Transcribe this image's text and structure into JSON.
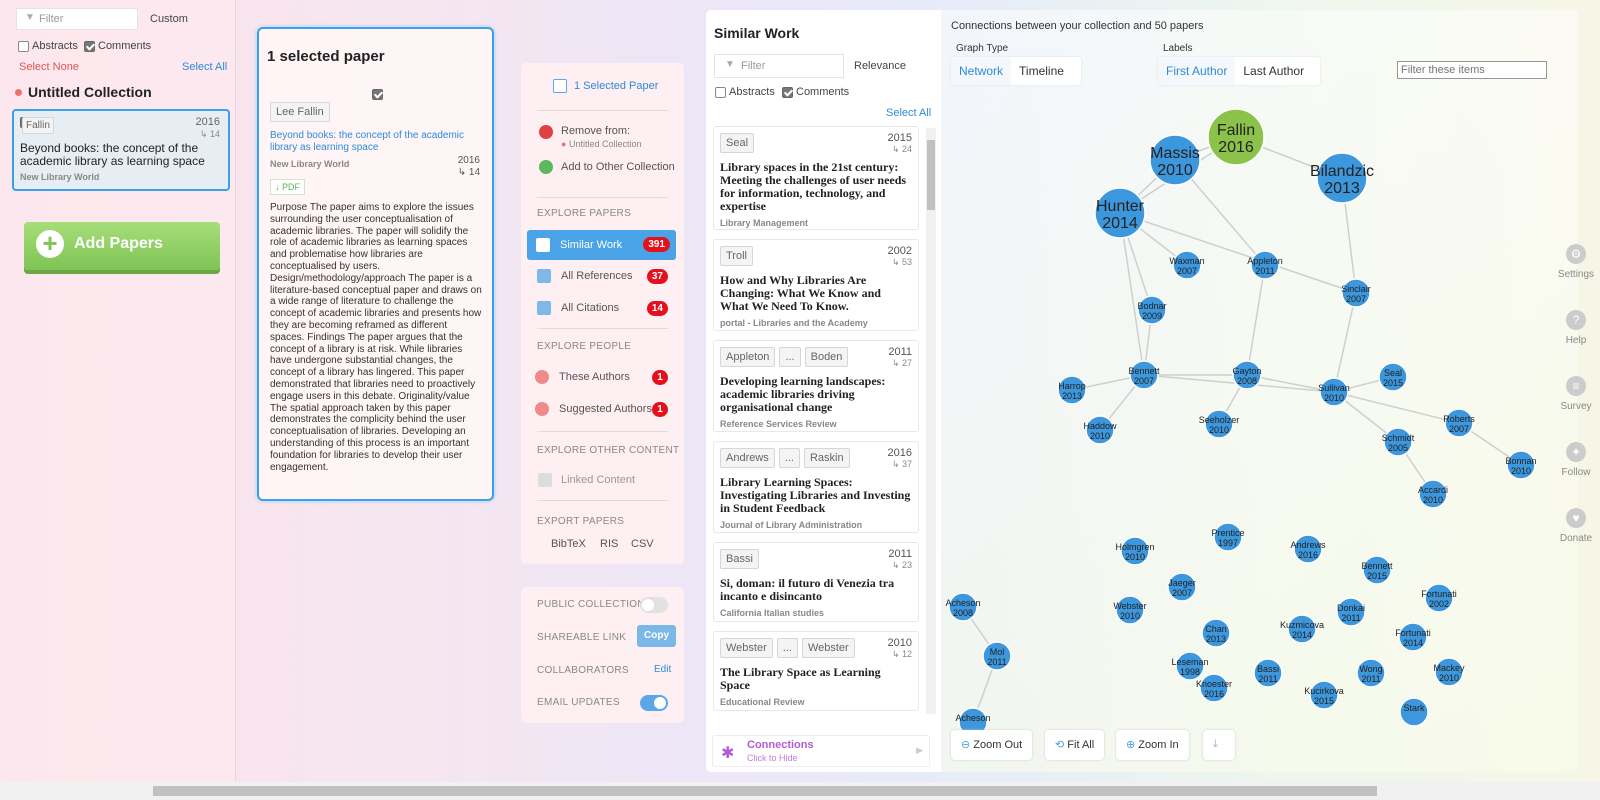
{
  "left": {
    "filter_placeholder": "Filter",
    "custom_label": "Custom",
    "abstracts_label": "Abstracts",
    "comments_label": "Comments",
    "select_none": "Select None",
    "select_all": "Select All",
    "collection_name": "Untitled Collection",
    "paper": {
      "author": "Fallin",
      "year": "2016",
      "cites": "↳ 14",
      "title": "Beyond books: the concept of the academic library as learning space",
      "journal": "New Library World"
    },
    "add_papers": "Add Papers"
  },
  "selected": {
    "heading": "1 selected paper",
    "author": "Lee Fallin",
    "title": "Beyond books: the concept of the academic library as learning space",
    "journal": "New Library World",
    "year": "2016",
    "cites": "↳ 14",
    "pdf": "↓ PDF",
    "abstract": "Purpose The paper aims to explore the issues surrounding the user conceptualisation of academic libraries. The paper will solidify the role of academic libraries as learning spaces and problematise how libraries are conceptualised by users. Design/methodology/approach The paper is a literature-based conceptual paper and draws on a wide range of literature to challenge the concept of academic libraries and presents how they are becoming reframed as different spaces. Findings The paper argues that the concept of a library is at risk. While libraries have undergone substantial changes, the concept of a library has lingered. This paper demonstrated that libraries need to proactively engage users in this debate. Originality/value The spatial approach taken by this paper demonstrates the complicity behind the user conceptualisation of libraries. Developing an understanding of this process is an important foundation for libraries to develop their user engagement."
  },
  "menu": {
    "selected_paper": "1 Selected Paper",
    "remove_from": "Remove from:",
    "remove_collection": "Untitled Collection",
    "add_other": "Add to Other Collection",
    "explore_papers": "EXPLORE PAPERS",
    "similar_work": "Similar Work",
    "similar_count": "391",
    "all_references": "All References",
    "references_count": "37",
    "all_citations": "All Citations",
    "citations_count": "14",
    "explore_people": "EXPLORE PEOPLE",
    "these_authors": "These Authors",
    "these_authors_count": "1",
    "suggested_authors": "Suggested Authors",
    "suggested_count": "1",
    "explore_other": "EXPLORE OTHER CONTENT",
    "linked_content": "Linked Content",
    "export_papers": "EXPORT PAPERS",
    "bibtex": "BibTeX",
    "ris": "RIS",
    "csv": "CSV"
  },
  "share": {
    "public_collection": "PUBLIC COLLECTION",
    "shareable_link": "SHAREABLE LINK",
    "copy": "Copy",
    "collaborators": "COLLABORATORS",
    "edit": "Edit",
    "email_updates": "EMAIL UPDATES",
    "public_on": false,
    "email_on": true
  },
  "similar": {
    "heading": "Similar Work",
    "filter_placeholder": "Filter",
    "sort": "Relevance",
    "abstracts_label": "Abstracts",
    "comments_label": "Comments",
    "select_all": "Select All",
    "papers": [
      {
        "authors": [
          "Seal"
        ],
        "year": "2015",
        "cites": "↳ 24",
        "title": "Library spaces in the 21st century: Meeting the challenges of user needs for information, technology, and expertise",
        "journal": "Library Management"
      },
      {
        "authors": [
          "Troll"
        ],
        "year": "2002",
        "cites": "↳ 53",
        "title": "How and Why Libraries Are Changing: What We Know and What We Need To Know.",
        "journal": "portal - Libraries and the Academy"
      },
      {
        "authors": [
          "Appleton",
          "...",
          "Boden"
        ],
        "year": "2011",
        "cites": "↳ 27",
        "title": "Developing learning landscapes: academic libraries driving organisational change",
        "journal": "Reference Services Review"
      },
      {
        "authors": [
          "Andrews",
          "...",
          "Raskin"
        ],
        "year": "2016",
        "cites": "↳ 37",
        "title": "Library Learning Spaces: Investigating Libraries and Investing in Student Feedback",
        "journal": "Journal of Library Administration"
      },
      {
        "authors": [
          "Bassi"
        ],
        "year": "2011",
        "cites": "↳ 23",
        "title": "Si, doman: il futuro di Venezia tra incanto e disincanto",
        "journal": "California Italian studies"
      },
      {
        "authors": [
          "Webster",
          "...",
          "Webster"
        ],
        "year": "2010",
        "cites": "↳ 12",
        "title": "The Library Space as Learning Space",
        "journal": "Educational Review"
      }
    ],
    "connections": "Connections",
    "connections_sub": "Click to Hide"
  },
  "graph": {
    "header": "Connections between your collection and 50 papers",
    "graph_type_label": "Graph Type",
    "network": "Network",
    "timeline": "Timeline",
    "labels_label": "Labels",
    "first_author": "First Author",
    "last_author": "Last Author",
    "filter_placeholder": "Filter these items",
    "zoom_out": "Zoom Out",
    "fit_all": "Fit All",
    "zoom_in": "Zoom In",
    "nodes": [
      {
        "id": "fallin",
        "name": "Fallin",
        "year": "2016",
        "big": true,
        "selected": true
      },
      {
        "id": "massis",
        "name": "Massis",
        "year": "2010",
        "big": true
      },
      {
        "id": "bilandzic",
        "name": "Bilandzic",
        "year": "2013",
        "big": true
      },
      {
        "id": "hunter",
        "name": "Hunter",
        "year": "2014",
        "big": true
      },
      {
        "id": "waxman",
        "name": "Waxman",
        "year": "2007"
      },
      {
        "id": "appleton",
        "name": "Appleton",
        "year": "2011"
      },
      {
        "id": "sinclair",
        "name": "Sinclair",
        "year": "2007"
      },
      {
        "id": "bodnar",
        "name": "Bodnar",
        "year": "2009"
      },
      {
        "id": "harrop",
        "name": "Harrop",
        "year": "2013"
      },
      {
        "id": "bennett",
        "name": "Bennett",
        "year": "2007"
      },
      {
        "id": "gayton",
        "name": "Gayton",
        "year": "2008"
      },
      {
        "id": "sullivan",
        "name": "Sullivan",
        "year": "2010"
      },
      {
        "id": "seal",
        "name": "Seal",
        "year": "2015"
      },
      {
        "id": "haddow",
        "name": "Haddow",
        "year": "2010"
      },
      {
        "id": "seeholzer",
        "name": "Seeholzer",
        "year": "2010"
      },
      {
        "id": "roberts",
        "name": "Roberts",
        "year": "2007"
      },
      {
        "id": "schmidt",
        "name": "Schmidt",
        "year": "2005"
      },
      {
        "id": "bonnand",
        "name": "Bonnan",
        "year": "2010"
      },
      {
        "id": "accardi",
        "name": "Accardi",
        "year": "2010"
      },
      {
        "id": "prentice",
        "name": "Prentice",
        "year": "1997"
      },
      {
        "id": "holmgren",
        "name": "Holmgren",
        "year": "2010"
      },
      {
        "id": "andrews",
        "name": "Andrews",
        "year": "2016"
      },
      {
        "id": "bennett15",
        "name": "Bennett",
        "year": "2015"
      },
      {
        "id": "jaeger",
        "name": "Jaeger",
        "year": "2007"
      },
      {
        "id": "fortunati02",
        "name": "Fortunati",
        "year": "2002"
      },
      {
        "id": "acheson",
        "name": "Acheson",
        "year": "2008"
      },
      {
        "id": "webster",
        "name": "Webster",
        "year": "2010"
      },
      {
        "id": "donkai",
        "name": "Donkai",
        "year": "2011"
      },
      {
        "id": "chan",
        "name": "Chan",
        "year": "2013"
      },
      {
        "id": "kuzmicova",
        "name": "Kuzmicova",
        "year": "2014"
      },
      {
        "id": "fortunati14",
        "name": "Fortunati",
        "year": "2014"
      },
      {
        "id": "mol",
        "name": "Mol",
        "year": "2011"
      },
      {
        "id": "leseman",
        "name": "Leseman",
        "year": "1998"
      },
      {
        "id": "bassi",
        "name": "Bassi",
        "year": "2011"
      },
      {
        "id": "wong",
        "name": "Wong",
        "year": "2011"
      },
      {
        "id": "mackey",
        "name": "Mackey",
        "year": "2010"
      },
      {
        "id": "knoester",
        "name": "Knoester",
        "year": "2016"
      },
      {
        "id": "kucirkova",
        "name": "Kucirkova",
        "year": "2015"
      },
      {
        "id": "stark",
        "name": "Stark",
        "year": ""
      },
      {
        "id": "acheson2",
        "name": "Acheson",
        "year": ""
      }
    ],
    "edges": [
      [
        "fallin",
        "massis"
      ],
      [
        "fallin",
        "bilandzic"
      ],
      [
        "fallin",
        "hunter"
      ],
      [
        "massis",
        "hunter"
      ],
      [
        "massis",
        "appleton"
      ],
      [
        "bilandzic",
        "sinclair"
      ],
      [
        "hunter",
        "waxman"
      ],
      [
        "hunter",
        "bodnar"
      ],
      [
        "hunter",
        "bennett"
      ],
      [
        "hunter",
        "sinclair"
      ],
      [
        "bodnar",
        "bennett"
      ],
      [
        "bennett",
        "harrop"
      ],
      [
        "bennett",
        "haddow"
      ],
      [
        "bennett",
        "gayton"
      ],
      [
        "bennett",
        "sullivan"
      ],
      [
        "gayton",
        "seeholzer"
      ],
      [
        "gayton",
        "appleton"
      ],
      [
        "gayton",
        "sullivan"
      ],
      [
        "sullivan",
        "sinclair"
      ],
      [
        "sullivan",
        "seal"
      ],
      [
        "sullivan",
        "roberts"
      ],
      [
        "sullivan",
        "schmidt"
      ],
      [
        "roberts",
        "bonnand"
      ],
      [
        "schmidt",
        "accardi"
      ],
      [
        "acheson",
        "mol"
      ],
      [
        "mol",
        "acheson2"
      ]
    ]
  },
  "rightnav": {
    "settings": "Settings",
    "help": "Help",
    "survey": "Survey",
    "follow": "Follow",
    "donate": "Donate"
  }
}
